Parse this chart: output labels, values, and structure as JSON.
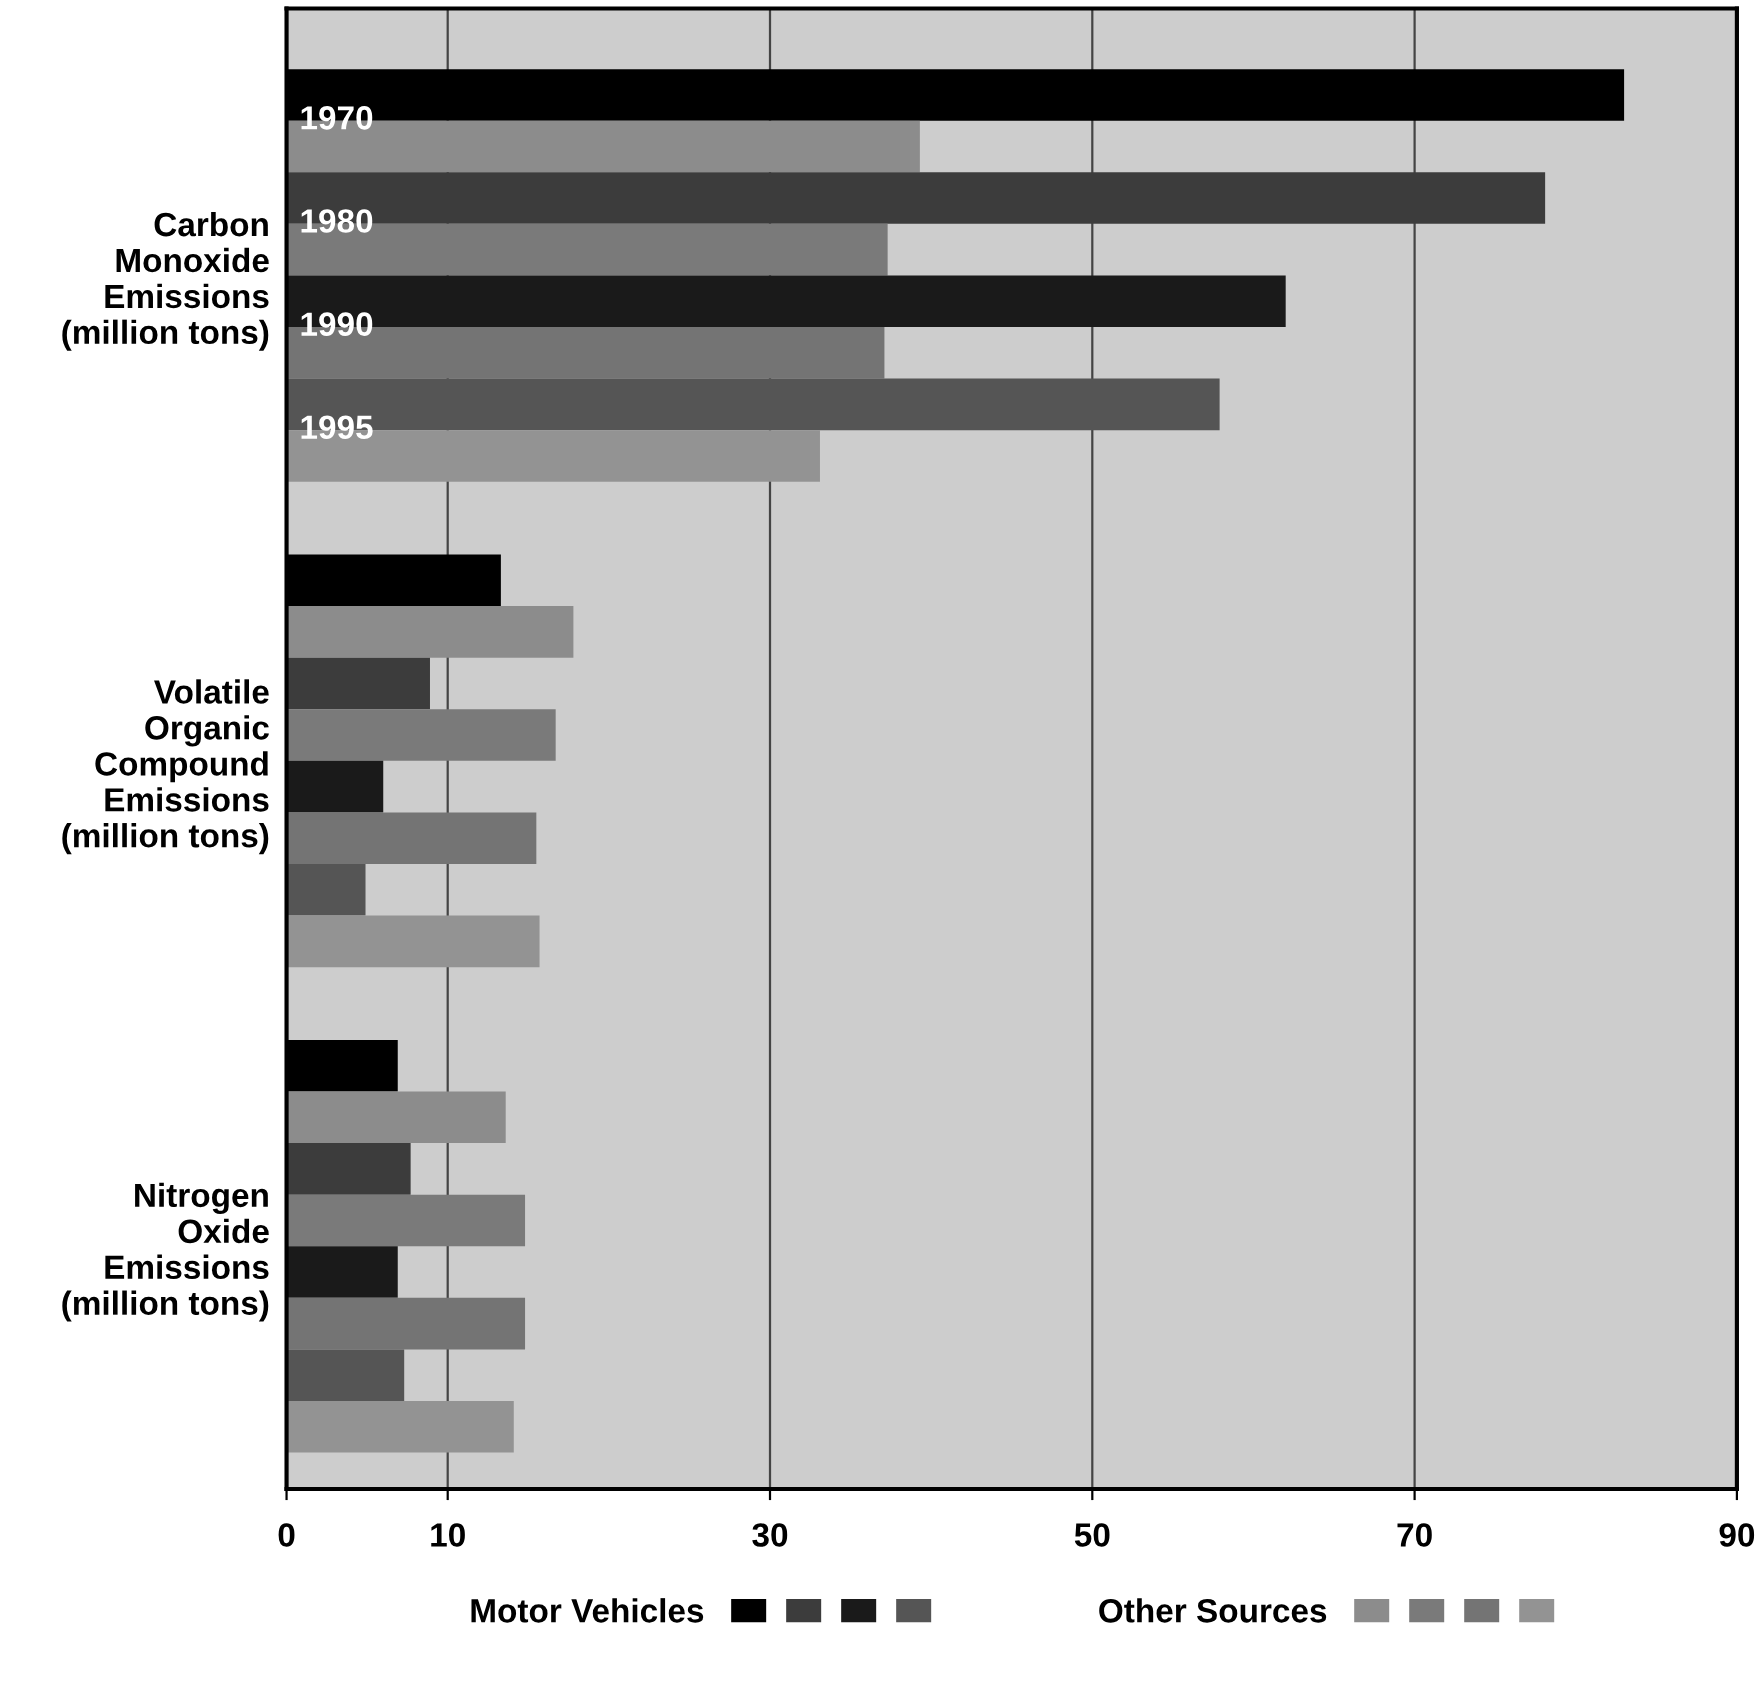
{
  "chart_data": {
    "type": "bar",
    "orientation": "horizontal",
    "categories": [
      "Carbon\nMonoxide\nEmissions\n(million tons)",
      "Volatile\nOrganic\nCompound\nEmissions\n(million tons)",
      "Nitrogen\nOxide\nEmissions\n(million tons)"
    ],
    "series": [
      {
        "name": "Motor Vehicles",
        "color": "#000000",
        "values": [
          83.0,
          13.3,
          6.9
        ]
      },
      {
        "name": "Other Sources",
        "color": "#8c8c8c",
        "values": [
          39.3,
          17.8,
          13.6
        ]
      },
      {
        "color": "#3c3c3c",
        "values": [
          78.1,
          8.9,
          7.7
        ]
      },
      {
        "color": "#7a7a7a",
        "values": [
          37.3,
          16.7,
          14.8
        ]
      },
      {
        "color": "#1a1a1a",
        "values": [
          62.0,
          6.0,
          6.9
        ]
      },
      {
        "color": "#747474",
        "values": [
          37.1,
          15.5,
          14.8
        ]
      },
      {
        "color": "#555555",
        "values": [
          57.9,
          4.9,
          7.3
        ]
      },
      {
        "color": "#939393",
        "values": [
          33.1,
          15.7,
          14.1
        ]
      }
    ],
    "annotations": [
      "1970",
      "1980",
      "1990",
      "1995"
    ],
    "xlim": [
      0,
      90
    ],
    "xticks": [
      0,
      10,
      30,
      50,
      70,
      90
    ],
    "grid": "x",
    "legend": "bottom"
  }
}
